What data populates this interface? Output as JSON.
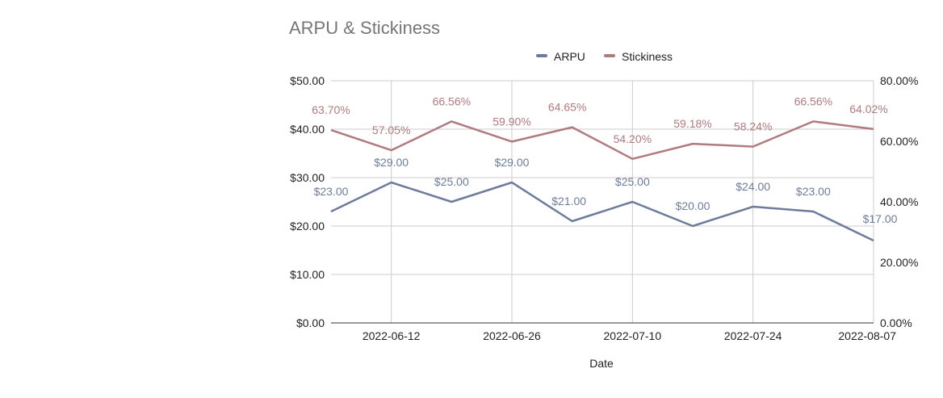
{
  "chart_data": {
    "type": "line",
    "title": "ARPU & Stickiness",
    "xlabel": "Date",
    "x": [
      "2022-06-05",
      "2022-06-12",
      "2022-06-19",
      "2022-06-26",
      "2022-07-03",
      "2022-07-10",
      "2022-07-17",
      "2022-07-24",
      "2022-07-31",
      "2022-08-07"
    ],
    "x_tick_labels": [
      "2022-06-12",
      "2022-06-26",
      "2022-07-10",
      "2022-07-24",
      "2022-08-07"
    ],
    "y_left": {
      "ylim": [
        0,
        50
      ],
      "ticks": [
        "$0.00",
        "$10.00",
        "$20.00",
        "$30.00",
        "$40.00",
        "$50.00"
      ]
    },
    "y_right": {
      "ylim": [
        0,
        80
      ],
      "ticks": [
        "0.00%",
        "20.00%",
        "40.00%",
        "60.00%",
        "80.00%"
      ]
    },
    "legend_position": "top-center",
    "grid": true,
    "series": [
      {
        "name": "ARPU",
        "axis": "left",
        "color": "#6d7c9c",
        "values": [
          23,
          29,
          25,
          29,
          21,
          25,
          20,
          24,
          23,
          17
        ],
        "labels": [
          "$23.00",
          "$29.00",
          "$25.00",
          "$29.00",
          "$21.00",
          "$25.00",
          "$20.00",
          "$24.00",
          "$23.00",
          "$17.00"
        ]
      },
      {
        "name": "Stickiness",
        "axis": "right",
        "color": "#b07a7f",
        "values": [
          63.7,
          57.05,
          66.56,
          59.9,
          64.65,
          54.2,
          59.18,
          58.24,
          66.56,
          64.02
        ],
        "labels": [
          "63.70%",
          "57.05%",
          "66.56%",
          "59.90%",
          "64.65%",
          "54.20%",
          "59.18%",
          "58.24%",
          "66.56%",
          "64.02%"
        ]
      }
    ]
  }
}
